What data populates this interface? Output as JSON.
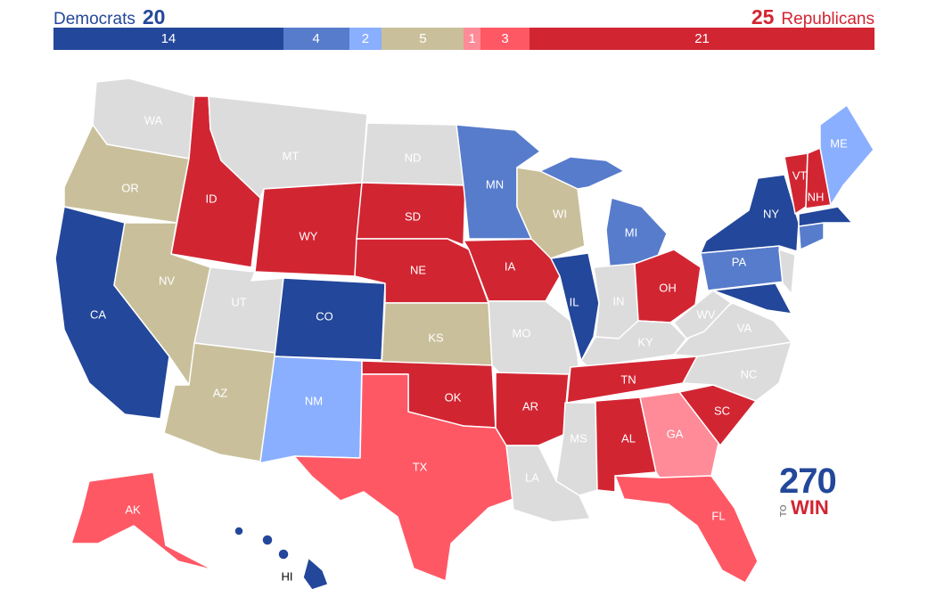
{
  "header": {
    "dem_label": "Democrats",
    "dem_count": "20",
    "rep_count": "25",
    "rep_label": "Republicans"
  },
  "bar": [
    {
      "value": "14",
      "count": 14,
      "color": "#23479a"
    },
    {
      "value": "4",
      "count": 4,
      "color": "#577ccc"
    },
    {
      "value": "2",
      "count": 2,
      "color": "#8aafff"
    },
    {
      "value": "5",
      "count": 5,
      "color": "#c9c09b"
    },
    {
      "value": "1",
      "count": 1,
      "color": "#ff8b98"
    },
    {
      "value": "3",
      "count": 3,
      "color": "#ff5865"
    },
    {
      "value": "21",
      "count": 21,
      "color": "#d22532"
    }
  ],
  "states": {
    "WA": "WA",
    "OR": "OR",
    "CA": "CA",
    "ID": "ID",
    "NV": "NV",
    "MT": "MT",
    "WY": "WY",
    "UT": "UT",
    "AZ": "AZ",
    "CO": "CO",
    "NM": "NM",
    "ND": "ND",
    "SD": "SD",
    "NE": "NE",
    "KS": "KS",
    "OK": "OK",
    "TX": "TX",
    "MN": "MN",
    "IA": "IA",
    "MO": "MO",
    "AR": "AR",
    "LA": "LA",
    "WI": "WI",
    "IL": "IL",
    "MI": "MI",
    "IN": "IN",
    "OH": "OH",
    "KY": "KY",
    "TN": "TN",
    "MS": "MS",
    "AL": "AL",
    "GA": "GA",
    "FL": "FL",
    "SC": "SC",
    "NC": "NC",
    "VA": "VA",
    "WV": "WV",
    "PA": "PA",
    "NY": "NY",
    "VT": "VT",
    "NH": "NH",
    "ME": "ME",
    "AK": "AK",
    "HI": "HI"
  },
  "colors": {
    "safe_dem": "#23479a",
    "likely_dem": "#577ccc",
    "lean_dem": "#8aafff",
    "tossup": "#c9c09b",
    "lean_rep": "#ff8b98",
    "likely_rep": "#ff5865",
    "safe_rep": "#d22532",
    "no_race": "#dcdcdc"
  },
  "logo": {
    "number": "270",
    "to": "TO",
    "win": "WIN"
  }
}
